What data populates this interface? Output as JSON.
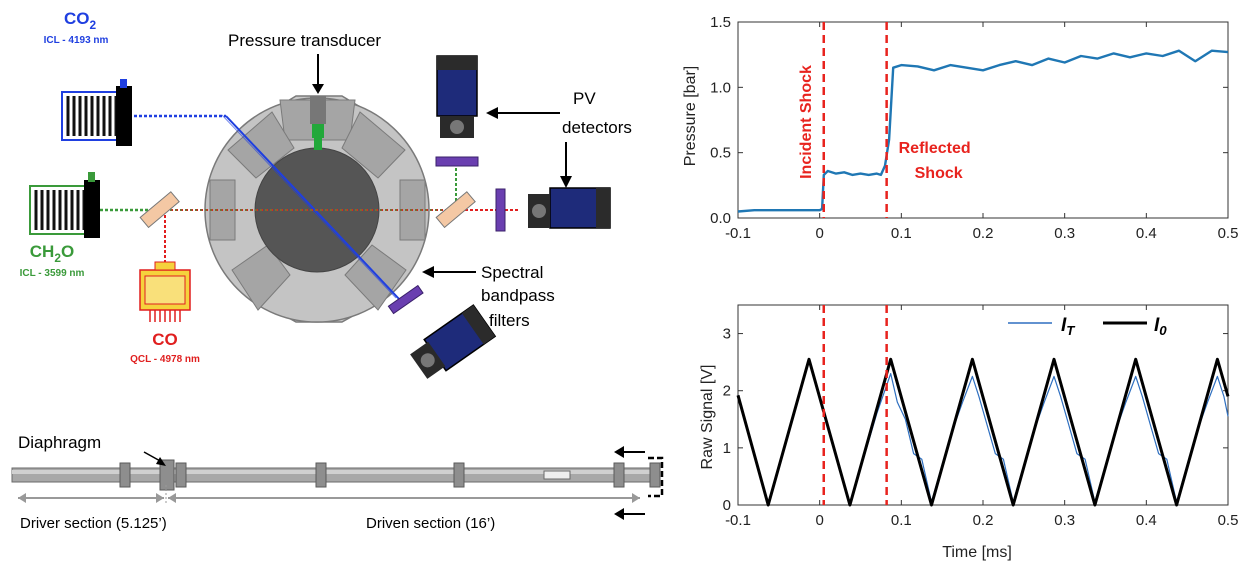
{
  "diagram": {
    "co2": {
      "formula": "CO",
      "subscript": "2",
      "laser": "ICL - 4193 nm",
      "color": "#1f3fe0"
    },
    "ch2o": {
      "formula_a": "CH",
      "subscript": "2",
      "formula_b": "O",
      "laser": "ICL - 3599 nm",
      "color": "#3a9a3a"
    },
    "co": {
      "formula": "CO",
      "laser": "QCL - 4978 nm",
      "color": "#e01f1f"
    },
    "pressure_transducer": "Pressure transducer",
    "pv_detectors": [
      "PV",
      "detectors"
    ],
    "spectral_filters": [
      "Spectral",
      "bandpass",
      "filters"
    ],
    "diaphragm": "Diaphragm",
    "driver_section": "Driver section (5.125’)",
    "driven_section": "Driven section (16’)"
  },
  "chart_data": [
    {
      "type": "line",
      "ylabel": "Pressure [bar]",
      "xlim": [
        -0.1,
        0.5
      ],
      "ylim": [
        0,
        1.5
      ],
      "xticks": [
        -0.1,
        0,
        0.1,
        0.2,
        0.3,
        0.4,
        0.5
      ],
      "yticks": [
        0,
        0.5,
        1,
        1.5
      ],
      "xtick_labels": [
        "-0.1",
        "0",
        "0.1",
        "0.2",
        "0.3",
        "0.4",
        "0.5"
      ],
      "ytick_labels": [
        "0.0",
        "0.5",
        "1.0",
        "1.5"
      ],
      "series": [
        {
          "color": "#1f77b4",
          "x": [
            -0.1,
            -0.08,
            -0.06,
            -0.04,
            -0.02,
            0.0,
            0.003,
            0.005,
            0.01,
            0.02,
            0.03,
            0.04,
            0.05,
            0.06,
            0.07,
            0.075,
            0.08,
            0.085,
            0.09,
            0.1,
            0.12,
            0.14,
            0.16,
            0.18,
            0.2,
            0.22,
            0.24,
            0.26,
            0.28,
            0.3,
            0.32,
            0.34,
            0.36,
            0.38,
            0.4,
            0.42,
            0.44,
            0.46,
            0.48,
            0.5
          ],
          "y": [
            0.05,
            0.06,
            0.06,
            0.06,
            0.06,
            0.06,
            0.07,
            0.33,
            0.36,
            0.34,
            0.35,
            0.33,
            0.34,
            0.33,
            0.34,
            0.33,
            0.4,
            0.6,
            1.15,
            1.17,
            1.16,
            1.13,
            1.17,
            1.15,
            1.13,
            1.17,
            1.2,
            1.17,
            1.22,
            1.19,
            1.24,
            1.22,
            1.26,
            1.23,
            1.26,
            1.24,
            1.28,
            1.2,
            1.28,
            1.27
          ]
        }
      ],
      "vlines": [
        {
          "x": 0.005,
          "label": "Incident Shock",
          "color": "#e8231e"
        },
        {
          "x": 0.082,
          "label": [
            "Reflected",
            "Shock"
          ],
          "color": "#e8231e"
        }
      ]
    },
    {
      "type": "line",
      "xlabel": "Time [ms]",
      "ylabel": "Raw Signal [V]",
      "xlim": [
        -0.1,
        0.5
      ],
      "ylim": [
        0,
        3.5
      ],
      "xticks": [
        -0.1,
        0,
        0.1,
        0.2,
        0.3,
        0.4,
        0.5
      ],
      "yticks": [
        0,
        1,
        2,
        3
      ],
      "xtick_labels": [
        "-0.1",
        "0",
        "0.1",
        "0.2",
        "0.3",
        "0.4",
        "0.5"
      ],
      "ytick_labels": [
        "0",
        "1",
        "2",
        "3"
      ],
      "series": [
        {
          "name": "I_T",
          "color": "#2e6fc0",
          "width": 1.2,
          "x": [
            -0.1,
            -0.063,
            -0.013,
            0.0,
            0.037,
            0.07,
            0.087,
            0.095,
            0.105,
            0.115,
            0.125,
            0.137,
            0.16,
            0.175,
            0.187,
            0.195,
            0.205,
            0.215,
            0.225,
            0.237,
            0.26,
            0.275,
            0.287,
            0.295,
            0.305,
            0.315,
            0.325,
            0.337,
            0.36,
            0.375,
            0.387,
            0.395,
            0.405,
            0.415,
            0.425,
            0.437,
            0.46,
            0.475,
            0.487,
            0.495,
            0.5
          ],
          "y": [
            1.92,
            0.0,
            2.55,
            1.9,
            0.0,
            1.6,
            2.3,
            1.8,
            1.5,
            0.9,
            0.8,
            0.05,
            1.2,
            1.8,
            2.25,
            1.9,
            1.4,
            0.9,
            0.8,
            0.05,
            1.2,
            1.8,
            2.25,
            1.9,
            1.4,
            0.9,
            0.8,
            0.05,
            1.2,
            1.8,
            2.25,
            1.9,
            1.4,
            0.9,
            0.8,
            0.05,
            1.2,
            1.8,
            2.25,
            1.9,
            1.55
          ]
        },
        {
          "name": "I_0",
          "color": "#000000",
          "width": 3,
          "x": [
            -0.1,
            -0.063,
            -0.013,
            0.037,
            0.087,
            0.137,
            0.187,
            0.237,
            0.287,
            0.337,
            0.387,
            0.437,
            0.487,
            0.5
          ],
          "y": [
            1.92,
            0.0,
            2.55,
            0.0,
            2.55,
            0.0,
            2.55,
            0.0,
            2.55,
            0.0,
            2.55,
            0.0,
            2.55,
            1.9
          ]
        }
      ],
      "legend": {
        "placement": "top-right",
        "entries": [
          {
            "main": "I",
            "sub": "T"
          },
          {
            "main": "I",
            "sub": "0"
          }
        ]
      },
      "vlines": [
        {
          "x": 0.005,
          "color": "#e8231e"
        },
        {
          "x": 0.082,
          "color": "#e8231e"
        }
      ]
    }
  ]
}
